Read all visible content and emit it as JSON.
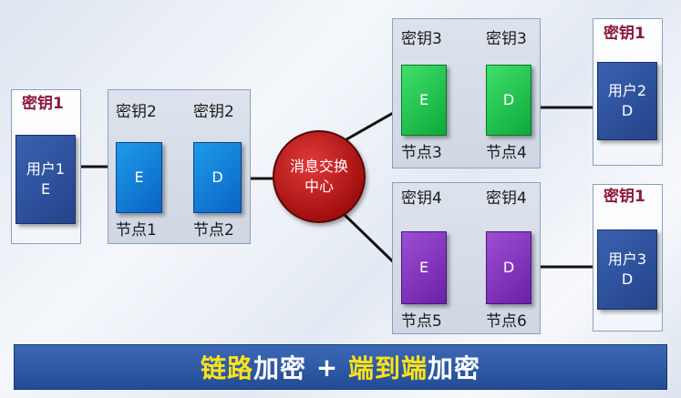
{
  "user1": {
    "key": "密钥1",
    "line1": "用户1",
    "line2": "E"
  },
  "user2": {
    "key": "密钥1",
    "line1": "用户2",
    "line2": "D"
  },
  "user3": {
    "key": "密钥1",
    "line1": "用户3",
    "line2": "D"
  },
  "link_a": {
    "key_e": "密钥2",
    "key_d": "密钥2",
    "e": "E",
    "d": "D",
    "node_e": "节点1",
    "node_d": "节点2"
  },
  "link_b": {
    "key_e": "密钥3",
    "key_d": "密钥3",
    "e": "E",
    "d": "D",
    "node_e": "节点3",
    "node_d": "节点4"
  },
  "link_c": {
    "key_e": "密钥4",
    "key_d": "密钥4",
    "e": "E",
    "d": "D",
    "node_e": "节点5",
    "node_d": "节点6"
  },
  "hub": {
    "line1": "消息交换",
    "line2": "中心"
  },
  "banner": {
    "part1": "链路",
    "part2": "加密",
    "plus": " + ",
    "part3": "端到端",
    "part4": "加密"
  },
  "colors": {
    "hub": "#b81414",
    "user": "#2c4f9c",
    "link_a": "#0f7fd8",
    "link_b": "#19c04c",
    "link_c": "#7f33b8",
    "banner": "#2d57a4",
    "highlight": "#ffe21a"
  }
}
